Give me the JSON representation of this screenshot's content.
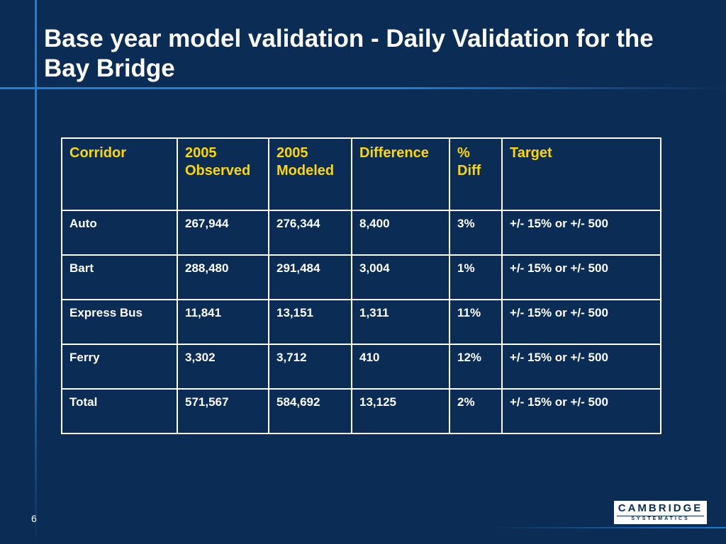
{
  "title": "Base year model validation - Daily Validation for the Bay Bridge",
  "table": {
    "headers": [
      "Corridor",
      "2005\nObserved",
      "2005\nModeled",
      "Difference",
      "%\nDiff",
      "Target"
    ],
    "rows": [
      [
        "Auto",
        "267,944",
        "276,344",
        "8,400",
        "3%",
        "+/- 15% or +/- 500"
      ],
      [
        "Bart",
        "288,480",
        "291,484",
        "3,004",
        "1%",
        "+/- 15% or +/- 500"
      ],
      [
        "Express Bus",
        "11,841",
        "13,151",
        "1,311",
        "11%",
        "+/- 15% or +/- 500"
      ],
      [
        "Ferry",
        "3,302",
        "3,712",
        "410",
        "12%",
        "+/- 15% or +/- 500"
      ],
      [
        "Total",
        "571,567",
        "584,692",
        "13,125",
        "2%",
        "+/- 15% or +/- 500"
      ]
    ]
  },
  "slide_number": "6",
  "logo": {
    "main": "CAMBRIDGE",
    "sub": "SYSTEMATICS"
  },
  "colors": {
    "background": "#0b2d55",
    "accent_line": "#1e7fd6",
    "header_text": "#ffd700",
    "text": "#ffffff"
  }
}
